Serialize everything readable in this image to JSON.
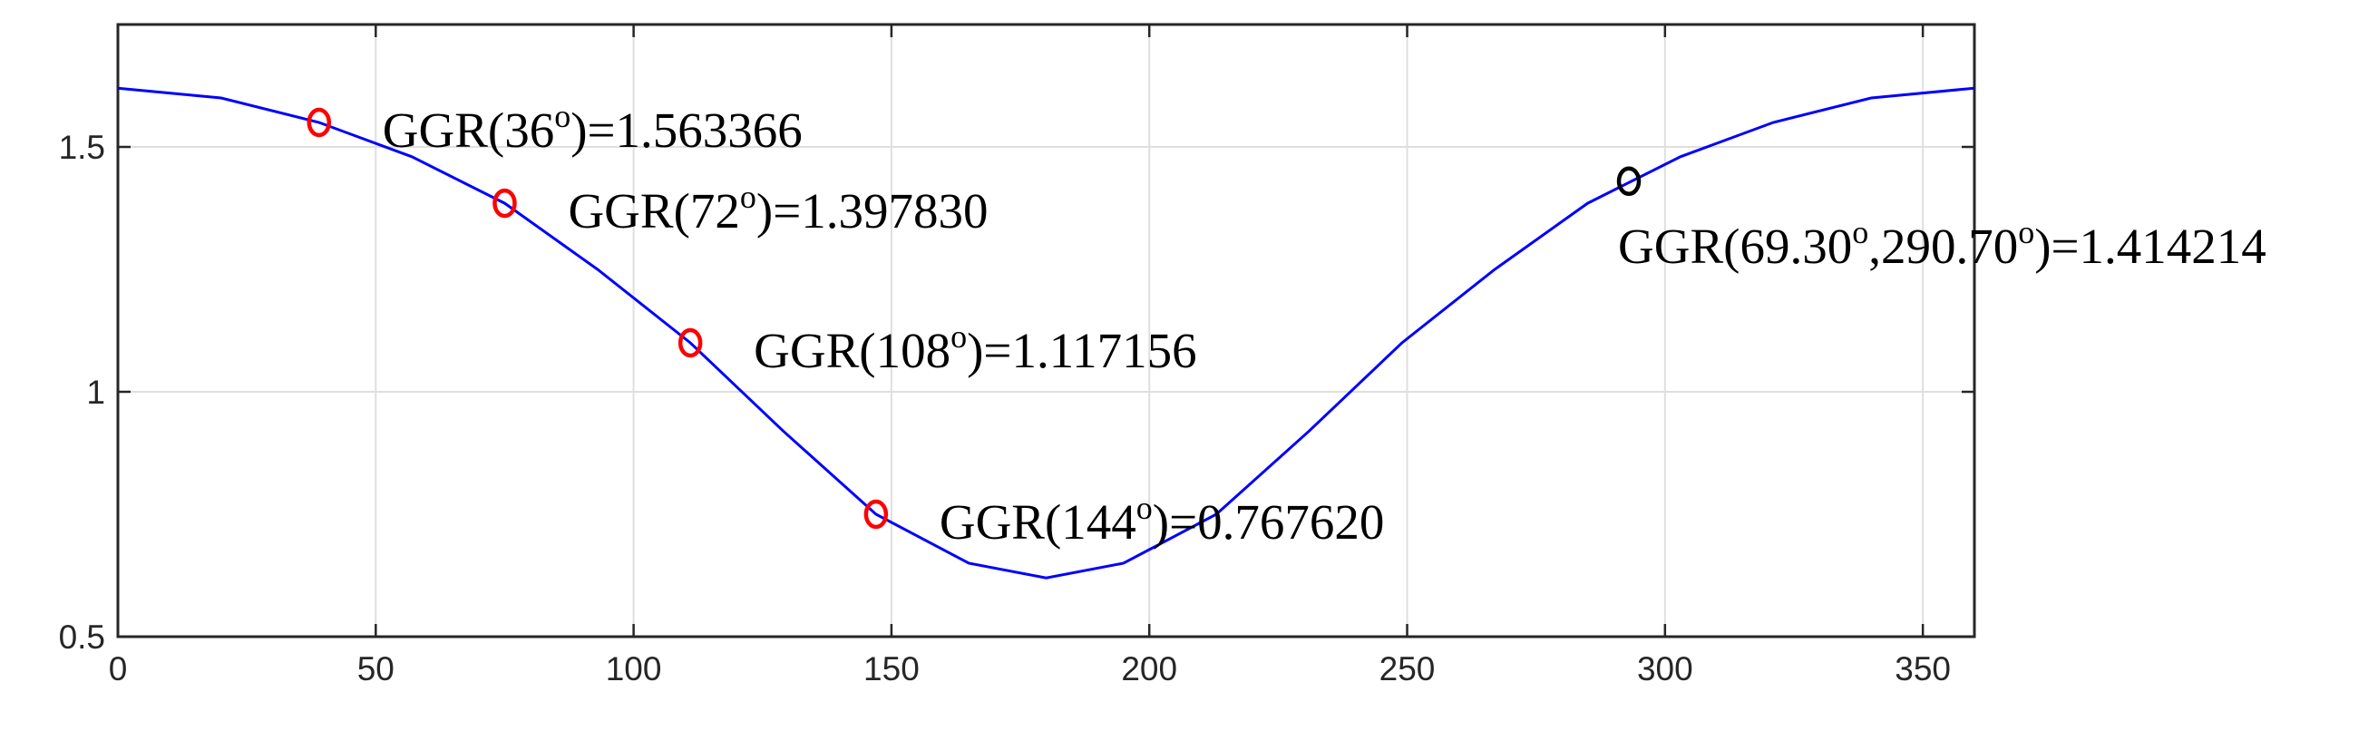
{
  "chart_data": {
    "type": "line",
    "x": [
      0,
      20,
      39,
      57,
      75,
      93,
      111,
      129,
      147,
      165,
      180,
      195,
      213,
      231,
      249,
      267,
      285,
      303,
      321,
      340,
      360
    ],
    "series": [
      {
        "color": "#0000ff",
        "values": [
          1.62,
          1.6,
          1.55,
          1.48,
          1.385,
          1.25,
          1.1,
          0.92,
          0.75,
          0.65,
          0.62,
          0.65,
          0.75,
          0.92,
          1.1,
          1.25,
          1.385,
          1.48,
          1.55,
          1.6,
          1.62
        ]
      }
    ],
    "markers": [
      {
        "x": 39,
        "y": 1.55,
        "color": "#ff0000",
        "label": [
          "GGR(36",
          "o",
          ")=1.563366"
        ]
      },
      {
        "x": 75,
        "y": 1.385,
        "color": "#ff0000",
        "label": [
          "GGR(72",
          "o",
          ")=1.397830"
        ]
      },
      {
        "x": 111,
        "y": 1.1,
        "color": "#ff0000",
        "label": [
          "GGR(108",
          "o",
          ")=1.117156"
        ]
      },
      {
        "x": 147,
        "y": 0.75,
        "color": "#ff0000",
        "label": [
          "GGR(144",
          "o",
          ")=0.767620"
        ]
      },
      {
        "x": 293,
        "y": 1.43,
        "color": "#000000",
        "label": [
          "GGR(69.30",
          "o",
          ",290.70",
          "o",
          ")=1.414214"
        ]
      }
    ],
    "xlim": [
      0,
      360
    ],
    "ylim": [
      0.5,
      1.75
    ],
    "xticks": [
      0,
      50,
      100,
      150,
      200,
      250,
      300,
      350
    ],
    "yticks": [
      0.5,
      1,
      1.5
    ],
    "grid": true
  }
}
